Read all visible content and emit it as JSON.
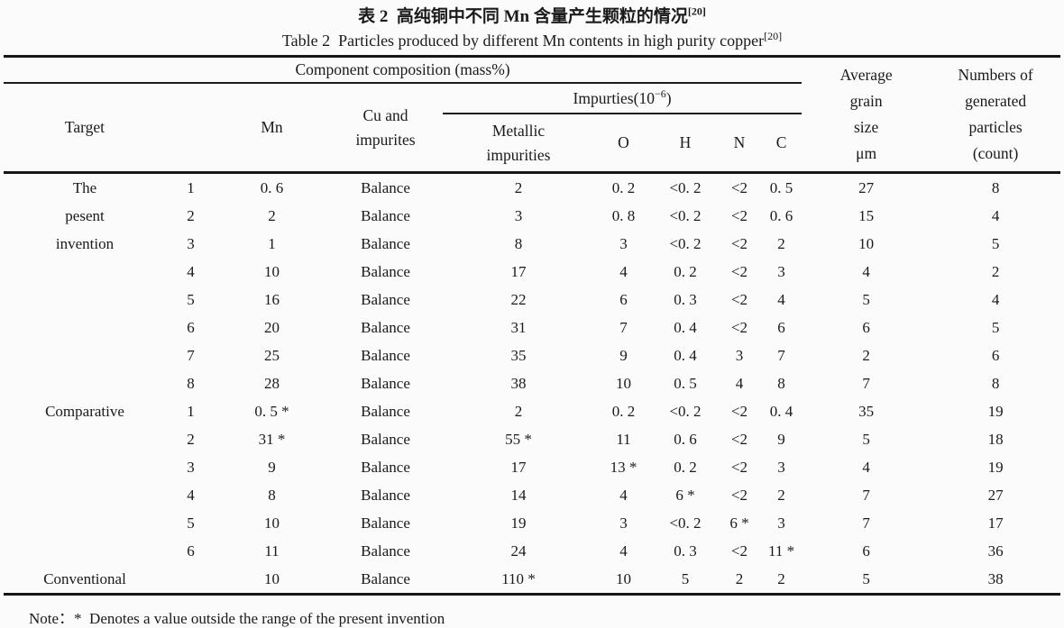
{
  "title": {
    "zh": "表 2  高纯铜中不同 Mn 含量产生颗粒的情况",
    "zh_ref": "[20]",
    "en": "Table 2  Particles produced by different Mn contents in high purity copper",
    "en_ref": "[20]"
  },
  "table": {
    "header": {
      "component_composition": "Component composition (mass%)",
      "impurities_pre": "Impurties(10",
      "impurities_sup": "−6",
      "impurities_post": ")",
      "target": "Target",
      "mn": "Mn",
      "cu_and_impurites": "Cu and\nimpurites",
      "metallic_impurities": "Metallic\nimpurities",
      "o": "O",
      "h": "H",
      "n": "N",
      "c": "C",
      "average_grain_size": "Average\ngrain\nsize\nμm",
      "numbers_of_particles": "Numbers of\ngenerated\nparticles\n(count)"
    },
    "rows": [
      {
        "target": "The",
        "no": "1",
        "mn": "0. 6",
        "cu": "Balance",
        "metallic": "2",
        "o": "0. 2",
        "h": "<0. 2",
        "n": "<2",
        "c": "0. 5",
        "grain": "27",
        "particles": "8"
      },
      {
        "target": "pesent",
        "no": "2",
        "mn": "2",
        "cu": "Balance",
        "metallic": "3",
        "o": "0. 8",
        "h": "<0. 2",
        "n": "<2",
        "c": "0. 6",
        "grain": "15",
        "particles": "4"
      },
      {
        "target": "invention",
        "no": "3",
        "mn": "1",
        "cu": "Balance",
        "metallic": "8",
        "o": "3",
        "h": "<0. 2",
        "n": "<2",
        "c": "2",
        "grain": "10",
        "particles": "5"
      },
      {
        "target": "",
        "no": "4",
        "mn": "10",
        "cu": "Balance",
        "metallic": "17",
        "o": "4",
        "h": "0. 2",
        "n": "<2",
        "c": "3",
        "grain": "4",
        "particles": "2"
      },
      {
        "target": "",
        "no": "5",
        "mn": "16",
        "cu": "Balance",
        "metallic": "22",
        "o": "6",
        "h": "0. 3",
        "n": "<2",
        "c": "4",
        "grain": "5",
        "particles": "4"
      },
      {
        "target": "",
        "no": "6",
        "mn": "20",
        "cu": "Balance",
        "metallic": "31",
        "o": "7",
        "h": "0. 4",
        "n": "<2",
        "c": "6",
        "grain": "6",
        "particles": "5"
      },
      {
        "target": "",
        "no": "7",
        "mn": "25",
        "cu": "Balance",
        "metallic": "35",
        "o": "9",
        "h": "0. 4",
        "n": "3",
        "c": "7",
        "grain": "2",
        "particles": "6"
      },
      {
        "target": "",
        "no": "8",
        "mn": "28",
        "cu": "Balance",
        "metallic": "38",
        "o": "10",
        "h": "0. 5",
        "n": "4",
        "c": "8",
        "grain": "7",
        "particles": "8"
      },
      {
        "target": "Comparative",
        "no": "1",
        "mn": "0. 5 *",
        "cu": "Balance",
        "metallic": "2",
        "o": "0. 2",
        "h": "<0. 2",
        "n": "<2",
        "c": "0. 4",
        "grain": "35",
        "particles": "19"
      },
      {
        "target": "",
        "no": "2",
        "mn": "31 *",
        "cu": "Balance",
        "metallic": "55 *",
        "o": "11",
        "h": "0. 6",
        "n": "<2",
        "c": "9",
        "grain": "5",
        "particles": "18"
      },
      {
        "target": "",
        "no": "3",
        "mn": "9",
        "cu": "Balance",
        "metallic": "17",
        "o": "13 *",
        "h": "0. 2",
        "n": "<2",
        "c": "3",
        "grain": "4",
        "particles": "19"
      },
      {
        "target": "",
        "no": "4",
        "mn": "8",
        "cu": "Balance",
        "metallic": "14",
        "o": "4",
        "h": "6 *",
        "n": "<2",
        "c": "2",
        "grain": "7",
        "particles": "27"
      },
      {
        "target": "",
        "no": "5",
        "mn": "10",
        "cu": "Balance",
        "metallic": "19",
        "o": "3",
        "h": "<0. 2",
        "n": "6 *",
        "c": "3",
        "grain": "7",
        "particles": "17"
      },
      {
        "target": "",
        "no": "6",
        "mn": "11",
        "cu": "Balance",
        "metallic": "24",
        "o": "4",
        "h": "0. 3",
        "n": "<2",
        "c": "11 *",
        "grain": "6",
        "particles": "36"
      },
      {
        "target": "Conventional",
        "no": "",
        "mn": "10",
        "cu": "Balance",
        "metallic": "110 *",
        "o": "10",
        "h": "5",
        "n": "2",
        "c": "2",
        "grain": "5",
        "particles": "38"
      }
    ]
  },
  "note": "Note：*  Denotes a value outside the range of the present invention"
}
